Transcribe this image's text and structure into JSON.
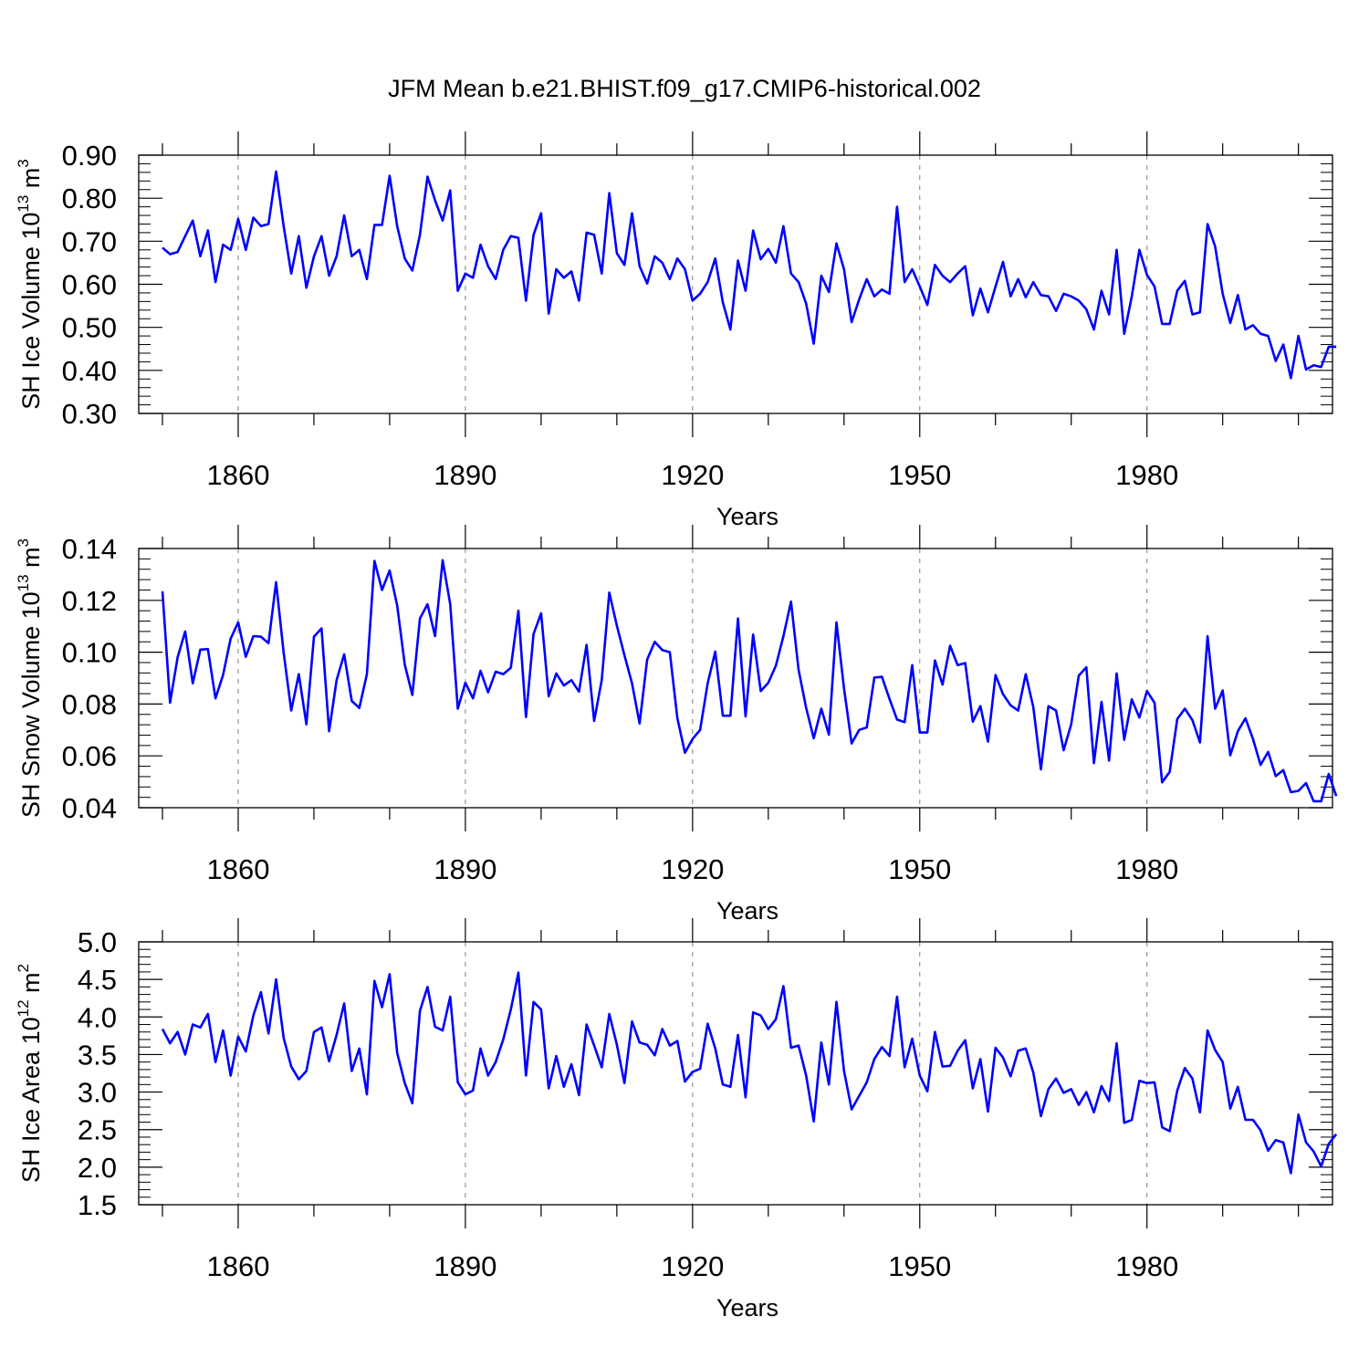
{
  "title": "JFM Mean b.e21.BHIST.f09_g17.CMIP6-historical.002",
  "colors": {
    "series": "#0000ff",
    "axis": "#000000",
    "grid": "#808080"
  },
  "chart_data": [
    {
      "type": "line",
      "ylabel": "SH Ice Volume 10",
      "ylabel_exp": "13",
      "ylabel_unit": " m",
      "ylabel_unit_exp": "3",
      "xlabel": "Years",
      "xlim": [
        1850,
        2005
      ],
      "ylim": [
        0.3,
        0.9
      ],
      "y_ticks": [
        0.3,
        0.4,
        0.5,
        0.6,
        0.7,
        0.8,
        0.9
      ],
      "y_tick_labels": [
        "0.30",
        "0.40",
        "0.50",
        "0.60",
        "0.70",
        "0.80",
        "0.90"
      ],
      "x_ticks": [
        1860,
        1890,
        1920,
        1950,
        1980
      ],
      "x_tick_labels": [
        "1860",
        "1890",
        "1920",
        "1950",
        "1980"
      ],
      "grid": "dashed vertical at labeled years",
      "x_start": 1850,
      "values": [
        0.685,
        0.67,
        0.675,
        0.712,
        0.748,
        0.665,
        0.725,
        0.605,
        0.692,
        0.68,
        0.752,
        0.68,
        0.755,
        0.735,
        0.74,
        0.862,
        0.735,
        0.625,
        0.712,
        0.592,
        0.665,
        0.712,
        0.62,
        0.665,
        0.76,
        0.665,
        0.68,
        0.612,
        0.738,
        0.738,
        0.852,
        0.735,
        0.66,
        0.632,
        0.715,
        0.85,
        0.795,
        0.748,
        0.818,
        0.585,
        0.625,
        0.615,
        0.692,
        0.642,
        0.612,
        0.68,
        0.712,
        0.708,
        0.562,
        0.715,
        0.765,
        0.532,
        0.635,
        0.615,
        0.63,
        0.562,
        0.72,
        0.715,
        0.625,
        0.812,
        0.672,
        0.645,
        0.765,
        0.642,
        0.602,
        0.665,
        0.65,
        0.612,
        0.66,
        0.635,
        0.562,
        0.578,
        0.605,
        0.66,
        0.558,
        0.495,
        0.655,
        0.585,
        0.725,
        0.658,
        0.682,
        0.65,
        0.735,
        0.625,
        0.605,
        0.555,
        0.462,
        0.62,
        0.582,
        0.695,
        0.635,
        0.512,
        0.565,
        0.612,
        0.572,
        0.588,
        0.578,
        0.78,
        0.605,
        0.635,
        0.595,
        0.552,
        0.645,
        0.62,
        0.605,
        0.625,
        0.642,
        0.528,
        0.59,
        0.535,
        0.595,
        0.652,
        0.572,
        0.612,
        0.57,
        0.605,
        0.575,
        0.572,
        0.538,
        0.578,
        0.572,
        0.562,
        0.542,
        0.495,
        0.585,
        0.53,
        0.68,
        0.485,
        0.572,
        0.68,
        0.622,
        0.595,
        0.508,
        0.508,
        0.585,
        0.608,
        0.53,
        0.535,
        0.74,
        0.688,
        0.578,
        0.51,
        0.575,
        0.495,
        0.505,
        0.485,
        0.48,
        0.422,
        0.46,
        0.382,
        0.48,
        0.402,
        0.412,
        0.408,
        0.455,
        0.455
      ]
    },
    {
      "type": "line",
      "ylabel": "SH Snow Volume 10",
      "ylabel_exp": "13",
      "ylabel_unit": " m",
      "ylabel_unit_exp": "3",
      "xlabel": "Years",
      "xlim": [
        1850,
        2005
      ],
      "ylim": [
        0.04,
        0.14
      ],
      "y_ticks": [
        0.04,
        0.06,
        0.08,
        0.1,
        0.12,
        0.14
      ],
      "y_tick_labels": [
        "0.04",
        "0.06",
        "0.08",
        "0.10",
        "0.12",
        "0.14"
      ],
      "x_ticks": [
        1860,
        1890,
        1920,
        1950,
        1980
      ],
      "x_tick_labels": [
        "1860",
        "1890",
        "1920",
        "1950",
        "1980"
      ],
      "grid": "dashed vertical at labeled years",
      "x_start": 1850,
      "values": [
        0.1235,
        0.0805,
        0.098,
        0.108,
        0.088,
        0.101,
        0.1012,
        0.0822,
        0.0912,
        0.1052,
        0.1115,
        0.0982,
        0.1062,
        0.106,
        0.1035,
        0.127,
        0.0998,
        0.0775,
        0.0915,
        0.0722,
        0.106,
        0.1092,
        0.0695,
        0.0892,
        0.0992,
        0.0812,
        0.0785,
        0.0915,
        0.1352,
        0.124,
        0.1315,
        0.118,
        0.0952,
        0.0835,
        0.113,
        0.1185,
        0.1062,
        0.1355,
        0.1185,
        0.0782,
        0.0882,
        0.0822,
        0.0928,
        0.0845,
        0.0925,
        0.0915,
        0.094,
        0.116,
        0.075,
        0.107,
        0.115,
        0.083,
        0.0918,
        0.0872,
        0.0892,
        0.0848,
        0.1028,
        0.0735,
        0.0892,
        0.123,
        0.1102,
        0.0988,
        0.088,
        0.0725,
        0.0972,
        0.104,
        0.1008,
        0.1,
        0.0745,
        0.0612,
        0.0665,
        0.07,
        0.088,
        0.1002,
        0.0755,
        0.0755,
        0.113,
        0.0752,
        0.1068,
        0.085,
        0.0882,
        0.0948,
        0.1062,
        0.1195,
        0.0932,
        0.0785,
        0.0668,
        0.0782,
        0.0682,
        0.1115,
        0.086,
        0.0648,
        0.07,
        0.071,
        0.0902,
        0.0905,
        0.082,
        0.074,
        0.073,
        0.095,
        0.069,
        0.069,
        0.0968,
        0.0875,
        0.1025,
        0.095,
        0.0958,
        0.0732,
        0.0792,
        0.0655,
        0.0912,
        0.0838,
        0.0795,
        0.0775,
        0.0915,
        0.0788,
        0.0548,
        0.0792,
        0.0775,
        0.0622,
        0.0722,
        0.091,
        0.0942,
        0.0572,
        0.0808,
        0.0582,
        0.0918,
        0.0662,
        0.0818,
        0.0748,
        0.085,
        0.0805,
        0.0498,
        0.0538,
        0.0742,
        0.0782,
        0.0738,
        0.0652,
        0.1062,
        0.0782,
        0.0852,
        0.0602,
        0.0695,
        0.0745,
        0.0665,
        0.0565,
        0.0615,
        0.0522,
        0.0545,
        0.046,
        0.0465,
        0.0495,
        0.0425,
        0.0425,
        0.053,
        0.0445
      ]
    },
    {
      "type": "line",
      "ylabel": "SH Ice Area 10",
      "ylabel_exp": "12",
      "ylabel_unit": " m",
      "ylabel_unit_exp": "2",
      "xlabel": "Years",
      "xlim": [
        1850,
        2005
      ],
      "ylim": [
        1.5,
        5.0
      ],
      "y_ticks": [
        1.5,
        2.0,
        2.5,
        3.0,
        3.5,
        4.0,
        4.5,
        5.0
      ],
      "y_tick_labels": [
        "1.5",
        "2.0",
        "2.5",
        "3.0",
        "3.5",
        "4.0",
        "4.5",
        "5.0"
      ],
      "x_ticks": [
        1860,
        1890,
        1920,
        1950,
        1980
      ],
      "x_tick_labels": [
        "1860",
        "1890",
        "1920",
        "1950",
        "1980"
      ],
      "grid": "dashed vertical at labeled years",
      "x_start": 1850,
      "values": [
        3.84,
        3.65,
        3.8,
        3.5,
        3.9,
        3.86,
        4.04,
        3.4,
        3.82,
        3.22,
        3.74,
        3.54,
        4.02,
        4.33,
        3.78,
        4.5,
        3.72,
        3.34,
        3.17,
        3.28,
        3.8,
        3.86,
        3.41,
        3.76,
        4.18,
        3.28,
        3.58,
        2.97,
        4.48,
        4.13,
        4.57,
        3.52,
        3.12,
        2.85,
        4.08,
        4.4,
        3.87,
        3.82,
        4.27,
        3.13,
        2.97,
        3.02,
        3.58,
        3.22,
        3.4,
        3.7,
        4.1,
        4.59,
        3.22,
        4.2,
        4.1,
        3.05,
        3.48,
        3.07,
        3.37,
        2.96,
        3.9,
        3.62,
        3.33,
        4.04,
        3.63,
        3.12,
        3.94,
        3.66,
        3.63,
        3.49,
        3.84,
        3.62,
        3.68,
        3.14,
        3.27,
        3.31,
        3.91,
        3.58,
        3.1,
        3.07,
        3.76,
        2.93,
        4.06,
        4.02,
        3.84,
        3.97,
        4.41,
        3.59,
        3.62,
        3.22,
        2.61,
        3.66,
        3.1,
        4.2,
        3.28,
        2.77,
        2.95,
        3.13,
        3.44,
        3.6,
        3.48,
        4.27,
        3.33,
        3.71,
        3.22,
        3.01,
        3.8,
        3.34,
        3.35,
        3.55,
        3.69,
        3.05,
        3.44,
        2.74,
        3.59,
        3.46,
        3.21,
        3.55,
        3.58,
        3.26,
        2.68,
        3.04,
        3.18,
        2.99,
        3.04,
        2.83,
        3.0,
        2.73,
        3.08,
        2.88,
        3.65,
        2.59,
        2.63,
        3.15,
        3.12,
        3.13,
        2.53,
        2.48,
        3.02,
        3.32,
        3.18,
        2.73,
        3.82,
        3.56,
        3.4,
        2.78,
        3.07,
        2.63,
        2.63,
        2.49,
        2.22,
        2.36,
        2.33,
        1.92,
        2.7,
        2.33,
        2.21,
        2.01,
        2.31,
        2.44
      ]
    }
  ]
}
